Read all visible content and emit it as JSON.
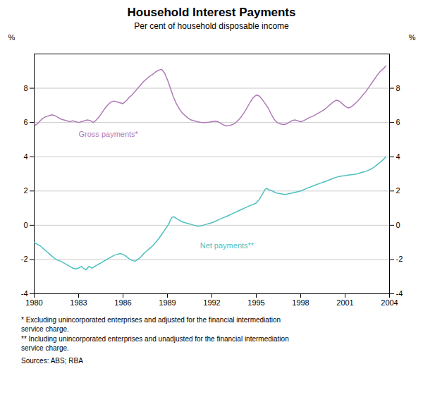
{
  "chart_data": {
    "type": "line",
    "title": "Household Interest Payments",
    "subtitle": "Per cent of household disposable income",
    "ylabel": "%",
    "y2label": "%",
    "xlim": [
      1980,
      2004
    ],
    "xticks": [
      1980,
      1983,
      1986,
      1989,
      1992,
      1995,
      1998,
      2001,
      2004
    ],
    "ylim": [
      -4,
      10
    ],
    "yticks": [
      -4,
      -2,
      0,
      2,
      4,
      6,
      8
    ],
    "y2lim": [
      -4,
      10
    ],
    "y2ticks": [
      -4,
      -2,
      0,
      2,
      4,
      6,
      8
    ],
    "grid": true,
    "footnotes": [
      "* Excluding unincorporated enterprises and adjusted for the financial intermediation\nservice charge.",
      "** Including unincorporated enterprises and unadjusted for the financial intermediation\nservice charge."
    ],
    "source": "Sources: ABS; RBA",
    "series": [
      {
        "name": "Gross payments*",
        "color": "#b07ab8",
        "label_at": [
          1983.0,
          5.15
        ],
        "x": [
          1980.0,
          1980.1,
          1980.2,
          1980.3,
          1980.4,
          1980.6,
          1980.8,
          1981.0,
          1981.2,
          1981.4,
          1981.6,
          1981.8,
          1982.0,
          1982.2,
          1982.4,
          1982.6,
          1982.8,
          1983.0,
          1983.2,
          1983.4,
          1983.6,
          1983.8,
          1984.0,
          1984.2,
          1984.4,
          1984.6,
          1984.8,
          1985.0,
          1985.2,
          1985.4,
          1985.6,
          1985.8,
          1986.0,
          1986.2,
          1986.4,
          1986.6,
          1986.8,
          1987.0,
          1987.2,
          1987.4,
          1987.6,
          1987.8,
          1988.0,
          1988.2,
          1988.4,
          1988.6,
          1988.8,
          1989.0,
          1989.2,
          1989.4,
          1989.6,
          1989.8,
          1990.0,
          1990.2,
          1990.4,
          1990.6,
          1990.8,
          1991.0,
          1991.2,
          1991.4,
          1991.6,
          1991.8,
          1992.0,
          1992.2,
          1992.4,
          1992.6,
          1992.8,
          1993.0,
          1993.2,
          1993.4,
          1993.6,
          1993.8,
          1994.0,
          1994.2,
          1994.4,
          1994.6,
          1994.8,
          1995.0,
          1995.2,
          1995.4,
          1995.6,
          1995.8,
          1996.0,
          1996.2,
          1996.4,
          1996.6,
          1996.8,
          1997.0,
          1997.2,
          1997.4,
          1997.6,
          1997.8,
          1998.0,
          1998.2,
          1998.4,
          1998.6,
          1998.8,
          1999.0,
          1999.2,
          1999.4,
          1999.6,
          1999.8,
          2000.0,
          2000.2,
          2000.4,
          2000.6,
          2000.8,
          2001.0,
          2001.2,
          2001.4,
          2001.6,
          2001.8,
          2002.0,
          2002.2,
          2002.4,
          2002.6,
          2002.8,
          2003.0,
          2003.2,
          2003.4,
          2003.6,
          2003.75
        ],
        "values": [
          5.9,
          5.85,
          5.92,
          6.0,
          6.1,
          6.25,
          6.35,
          6.4,
          6.45,
          6.4,
          6.3,
          6.2,
          6.15,
          6.1,
          6.05,
          6.1,
          6.05,
          6.0,
          6.05,
          6.1,
          6.15,
          6.1,
          6.0,
          6.15,
          6.35,
          6.6,
          6.85,
          7.05,
          7.2,
          7.25,
          7.2,
          7.15,
          7.1,
          7.25,
          7.45,
          7.6,
          7.8,
          8.0,
          8.2,
          8.4,
          8.55,
          8.7,
          8.8,
          8.95,
          9.05,
          9.1,
          8.9,
          8.5,
          8.0,
          7.5,
          7.1,
          6.8,
          6.55,
          6.4,
          6.25,
          6.15,
          6.1,
          6.05,
          6.02,
          6.0,
          6.0,
          6.02,
          6.05,
          6.08,
          6.05,
          5.95,
          5.85,
          5.8,
          5.82,
          5.88,
          5.98,
          6.15,
          6.35,
          6.6,
          6.9,
          7.2,
          7.45,
          7.6,
          7.55,
          7.35,
          7.1,
          6.85,
          6.5,
          6.2,
          6.0,
          5.92,
          5.88,
          5.9,
          6.0,
          6.1,
          6.15,
          6.1,
          6.05,
          6.1,
          6.2,
          6.3,
          6.35,
          6.45,
          6.55,
          6.65,
          6.75,
          6.9,
          7.05,
          7.2,
          7.3,
          7.25,
          7.1,
          6.95,
          6.85,
          6.9,
          7.05,
          7.2,
          7.4,
          7.6,
          7.8,
          8.05,
          8.3,
          8.55,
          8.8,
          9.0,
          9.15,
          9.3
        ]
      },
      {
        "name": "Net payments**",
        "color": "#4dbfbf",
        "label_at": [
          1991.2,
          -1.35
        ],
        "x": [
          1980.0,
          1980.1,
          1980.2,
          1980.3,
          1980.4,
          1980.6,
          1980.8,
          1981.0,
          1981.2,
          1981.4,
          1981.6,
          1981.8,
          1982.0,
          1982.2,
          1982.4,
          1982.6,
          1982.8,
          1983.0,
          1983.1,
          1983.2,
          1983.3,
          1983.4,
          1983.5,
          1983.6,
          1983.7,
          1983.8,
          1983.9,
          1984.0,
          1984.1,
          1984.2,
          1984.3,
          1984.4,
          1984.5,
          1984.6,
          1984.7,
          1984.8,
          1984.9,
          1985.0,
          1985.2,
          1985.4,
          1985.6,
          1985.8,
          1986.0,
          1986.2,
          1986.4,
          1986.6,
          1986.8,
          1987.0,
          1987.2,
          1987.4,
          1987.6,
          1987.8,
          1988.0,
          1988.2,
          1988.4,
          1988.6,
          1988.8,
          1989.0,
          1989.1,
          1989.2,
          1989.3,
          1989.4,
          1989.5,
          1989.6,
          1989.7,
          1989.8,
          1989.9,
          1990.0,
          1990.2,
          1990.4,
          1990.6,
          1990.8,
          1991.0,
          1991.2,
          1991.4,
          1991.6,
          1991.8,
          1992.0,
          1992.2,
          1992.4,
          1992.6,
          1992.8,
          1993.0,
          1993.2,
          1993.4,
          1993.6,
          1993.8,
          1994.0,
          1994.2,
          1994.4,
          1994.6,
          1994.8,
          1995.0,
          1995.1,
          1995.2,
          1995.3,
          1995.4,
          1995.5,
          1995.6,
          1995.7,
          1995.8,
          1995.9,
          1996.0,
          1996.1,
          1996.2,
          1996.3,
          1996.4,
          1996.6,
          1996.8,
          1997.0,
          1997.2,
          1997.4,
          1997.6,
          1997.8,
          1998.0,
          1998.2,
          1998.4,
          1998.6,
          1998.8,
          1999.0,
          1999.2,
          1999.4,
          1999.6,
          1999.8,
          2000.0,
          2000.2,
          2000.4,
          2000.6,
          2000.8,
          2001.0,
          2001.2,
          2001.4,
          2001.6,
          2001.8,
          2002.0,
          2002.2,
          2002.4,
          2002.6,
          2002.8,
          2003.0,
          2003.2,
          2003.4,
          2003.6,
          2003.75
        ],
        "values": [
          -1.0,
          -1.05,
          -1.1,
          -1.15,
          -1.2,
          -1.35,
          -1.5,
          -1.65,
          -1.8,
          -1.95,
          -2.05,
          -2.1,
          -2.2,
          -2.3,
          -2.4,
          -2.5,
          -2.55,
          -2.5,
          -2.45,
          -2.4,
          -2.5,
          -2.55,
          -2.6,
          -2.5,
          -2.4,
          -2.45,
          -2.5,
          -2.45,
          -2.4,
          -2.35,
          -2.3,
          -2.25,
          -2.2,
          -2.15,
          -2.1,
          -2.05,
          -2.0,
          -1.95,
          -1.85,
          -1.75,
          -1.7,
          -1.65,
          -1.7,
          -1.8,
          -1.95,
          -2.05,
          -2.1,
          -2.0,
          -1.85,
          -1.65,
          -1.5,
          -1.35,
          -1.2,
          -1.0,
          -0.8,
          -0.55,
          -0.3,
          -0.05,
          0.1,
          0.3,
          0.45,
          0.5,
          0.45,
          0.4,
          0.35,
          0.3,
          0.25,
          0.2,
          0.15,
          0.1,
          0.05,
          0.0,
          -0.05,
          -0.05,
          0.0,
          0.05,
          0.1,
          0.15,
          0.22,
          0.3,
          0.38,
          0.45,
          0.52,
          0.6,
          0.68,
          0.76,
          0.84,
          0.92,
          1.0,
          1.08,
          1.15,
          1.22,
          1.3,
          1.4,
          1.5,
          1.65,
          1.8,
          1.95,
          2.1,
          2.15,
          2.1,
          2.05,
          2.05,
          2.0,
          1.95,
          1.9,
          1.88,
          1.85,
          1.82,
          1.8,
          1.85,
          1.88,
          1.92,
          1.96,
          2.0,
          2.08,
          2.15,
          2.22,
          2.28,
          2.35,
          2.42,
          2.48,
          2.54,
          2.6,
          2.67,
          2.74,
          2.8,
          2.85,
          2.88,
          2.9,
          2.93,
          2.95,
          2.97,
          3.0,
          3.05,
          3.1,
          3.15,
          3.22,
          3.3,
          3.42,
          3.56,
          3.7,
          3.85,
          4.0
        ]
      }
    ]
  }
}
